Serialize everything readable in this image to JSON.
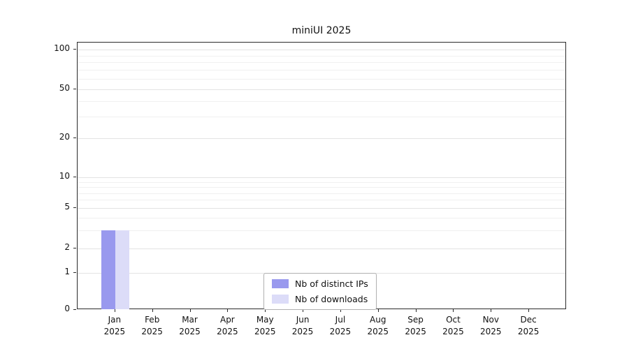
{
  "chart_data": {
    "type": "bar",
    "title": "miniUI 2025",
    "categories": [
      "Jan 2025",
      "Feb 2025",
      "Mar 2025",
      "Apr 2025",
      "May 2025",
      "Jun 2025",
      "Jul 2025",
      "Aug 2025",
      "Sep 2025",
      "Oct 2025",
      "Nov 2025",
      "Dec 2025"
    ],
    "series": [
      {
        "name": "Nb of distinct IPs",
        "color": "#9999ee",
        "values": [
          3,
          0,
          0,
          0,
          0,
          0,
          0,
          0,
          0,
          0,
          0,
          0
        ]
      },
      {
        "name": "Nb of downloads",
        "color": "#dcdcf8",
        "values": [
          3,
          0,
          0,
          0,
          0,
          0,
          0,
          0,
          0,
          0,
          0,
          0
        ]
      }
    ],
    "yticks": [
      0,
      1,
      2,
      5,
      10,
      20,
      50,
      100
    ],
    "ylim": [
      0,
      100
    ],
    "yscale": "log",
    "grid": "horizontal",
    "legend_position": "bottom-center"
  }
}
